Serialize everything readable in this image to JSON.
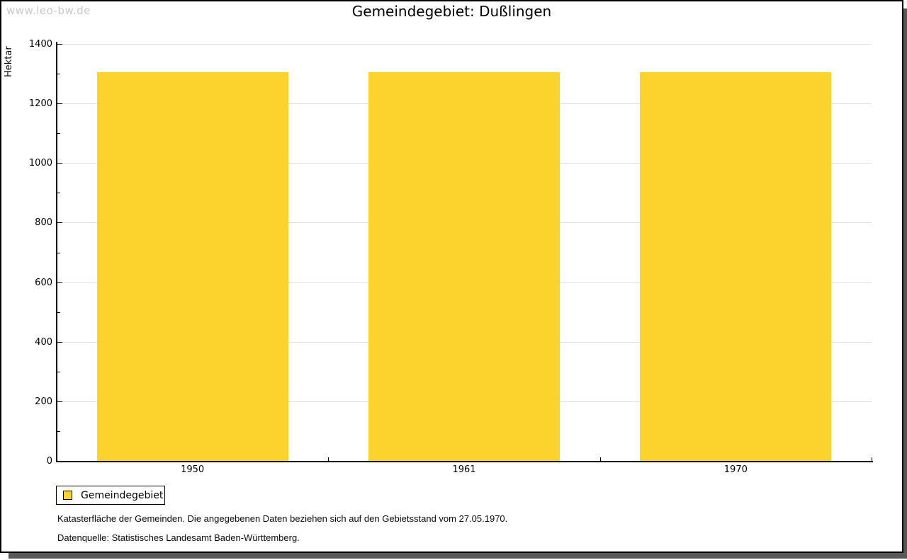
{
  "watermark": "www.leo-bw.de",
  "title": "Gemeindegebiet: Dußlingen",
  "chart_data": {
    "type": "bar",
    "categories": [
      "1950",
      "1961",
      "1970"
    ],
    "series": [
      {
        "name": "Gemeindegebiet",
        "values": [
          1306,
          1306,
          1306
        ]
      }
    ],
    "title": "Gemeindegebiet: Dußlingen",
    "xlabel": "",
    "ylabel": "Hektar",
    "ylim": [
      0,
      1400
    ],
    "ytick_step": 200,
    "yminor_step": 100,
    "grid": true,
    "legend_position": "bottom-left",
    "bar_color": "#FCD32D"
  },
  "legend": {
    "label": "Gemeindegebiet",
    "swatch_color": "#FCD32D"
  },
  "footnotes": {
    "line1": "Katasterfläche der Gemeinden. Die angegebenen Daten beziehen sich auf den Gebietsstand vom 27.05.1970.",
    "line2": "Datenquelle: Statistisches Landesamt Baden-Württemberg."
  },
  "colors": {
    "bar": "#FCD32D",
    "gridline": "#e0e0e0",
    "axis": "#000000",
    "watermark": "#c8c8c8",
    "shadow": "#58585b",
    "border": "#000000"
  }
}
